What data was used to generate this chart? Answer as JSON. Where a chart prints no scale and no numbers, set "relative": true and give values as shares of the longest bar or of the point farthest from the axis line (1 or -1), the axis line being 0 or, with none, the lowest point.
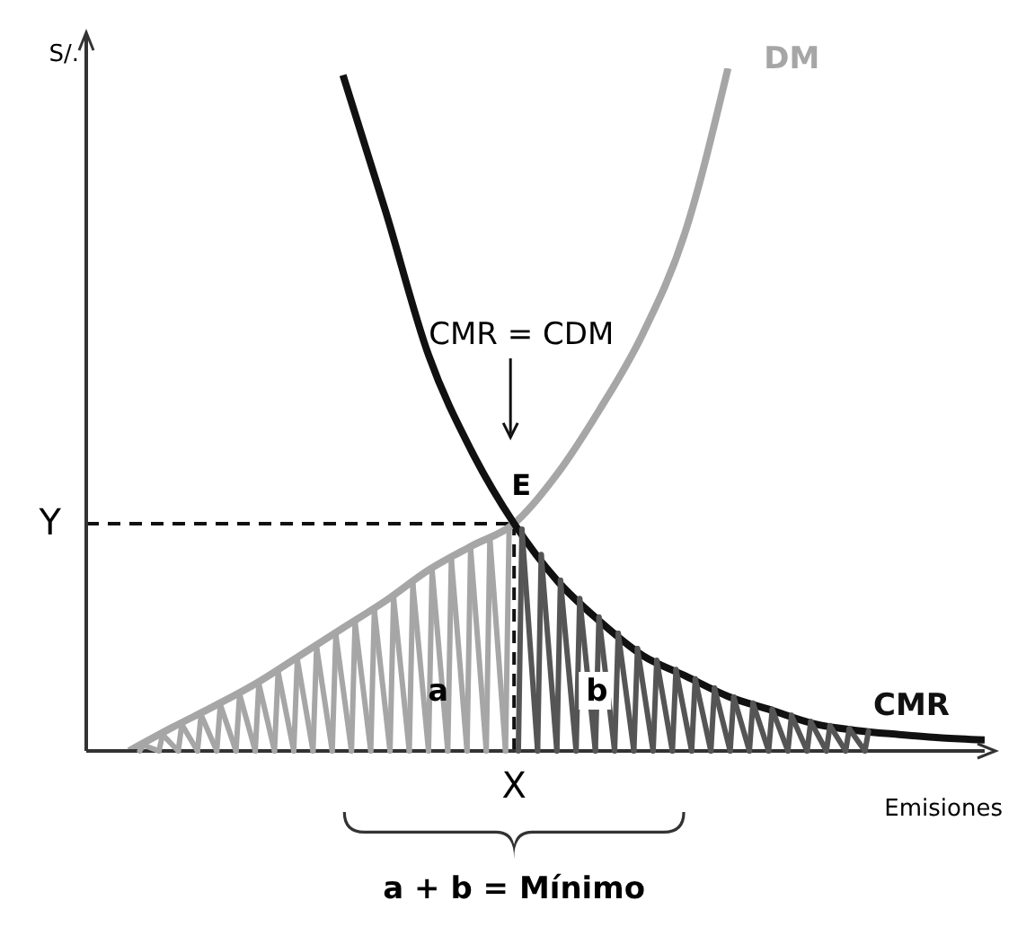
{
  "chart_data": {
    "type": "line",
    "relative": true,
    "xlabel": "Emisiones",
    "ylabel": "S/.",
    "categories": [
      null,
      null,
      null,
      null,
      null,
      null,
      null,
      null,
      null,
      null,
      null,
      null,
      null,
      null,
      null,
      null,
      null,
      null,
      null,
      null,
      null,
      null
    ],
    "series": [
      {
        "name": "DM",
        "color": "#a6a6a6",
        "values": [
          null,
          0,
          0.034,
          0.066,
          0.1,
          0.14,
          0.18,
          0.22,
          0.265,
          0.3,
          0.333,
          0.405,
          0.5,
          0.61,
          0.76,
          1,
          null,
          null,
          null,
          null,
          null,
          null
        ]
      },
      {
        "name": "CMR",
        "color": "#111111",
        "values": [
          null,
          null,
          null,
          null,
          null,
          null,
          0.99,
          0.79,
          0.58,
          0.44,
          0.333,
          0.25,
          0.19,
          0.14,
          0.11,
          0.08,
          0.06,
          0.04,
          0.03,
          0.024,
          0.019,
          0.016
        ]
      }
    ],
    "ref_lines": [
      {
        "axis": "y",
        "value": 0.333,
        "label": "Y",
        "line_style": "dashed"
      },
      {
        "axis": "x",
        "label": "X",
        "line_style": "dashed"
      }
    ],
    "annotations": [
      "CMR = CDM",
      {
        "text": "E",
        "y": 0.333
      },
      "a",
      "b",
      "a + b = Mínimo"
    ],
    "grid": false,
    "legend": false,
    "marker": "none",
    "line_style": "solid"
  }
}
